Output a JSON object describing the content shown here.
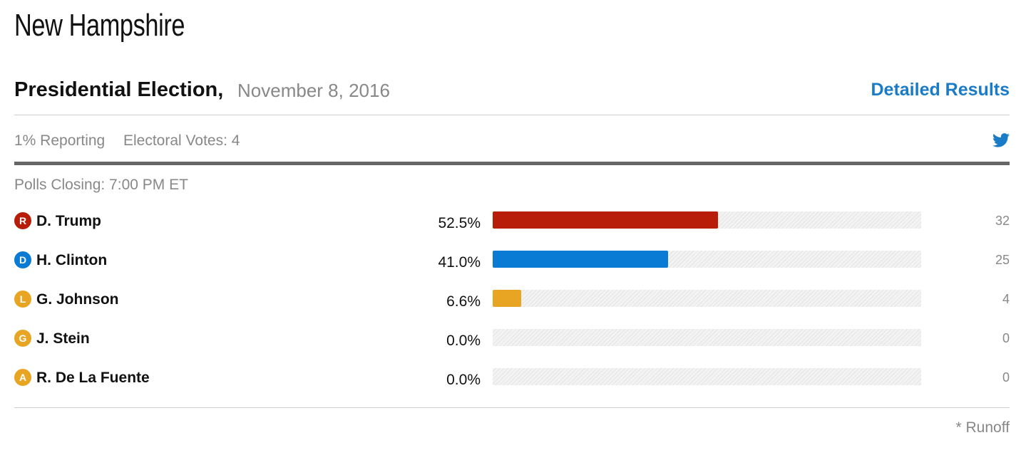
{
  "header": {
    "title": "New Hampshire"
  },
  "race": {
    "name": "Presidential Election,",
    "date": "November 8, 2016",
    "link": "Detailed Results",
    "reporting": "1% Reporting",
    "electoral_votes": "Electoral Votes: 4",
    "polls_closing": "Polls Closing: 7:00 PM ET"
  },
  "results": {
    "xlim": [
      0,
      100
    ],
    "track_pattern": true,
    "candidates": [
      {
        "party": "R",
        "name": "D. Trump",
        "percent": 52.5,
        "percent_label": "52.5%",
        "votes": 32,
        "color": "#b81d0a"
      },
      {
        "party": "D",
        "name": "H. Clinton",
        "percent": 41.0,
        "percent_label": "41.0%",
        "votes": 25,
        "color": "#0a7bd4"
      },
      {
        "party": "L",
        "name": "G. Johnson",
        "percent": 6.6,
        "percent_label": "6.6%",
        "votes": 4,
        "color": "#e8a523"
      },
      {
        "party": "G",
        "name": "J. Stein",
        "percent": 0.0,
        "percent_label": "0.0%",
        "votes": 0,
        "color": "#e8a523"
      },
      {
        "party": "A",
        "name": "R. De La Fuente",
        "percent": 0.0,
        "percent_label": "0.0%",
        "votes": 0,
        "color": "#e8a523"
      }
    ]
  },
  "footer": {
    "note": "* Runoff"
  }
}
